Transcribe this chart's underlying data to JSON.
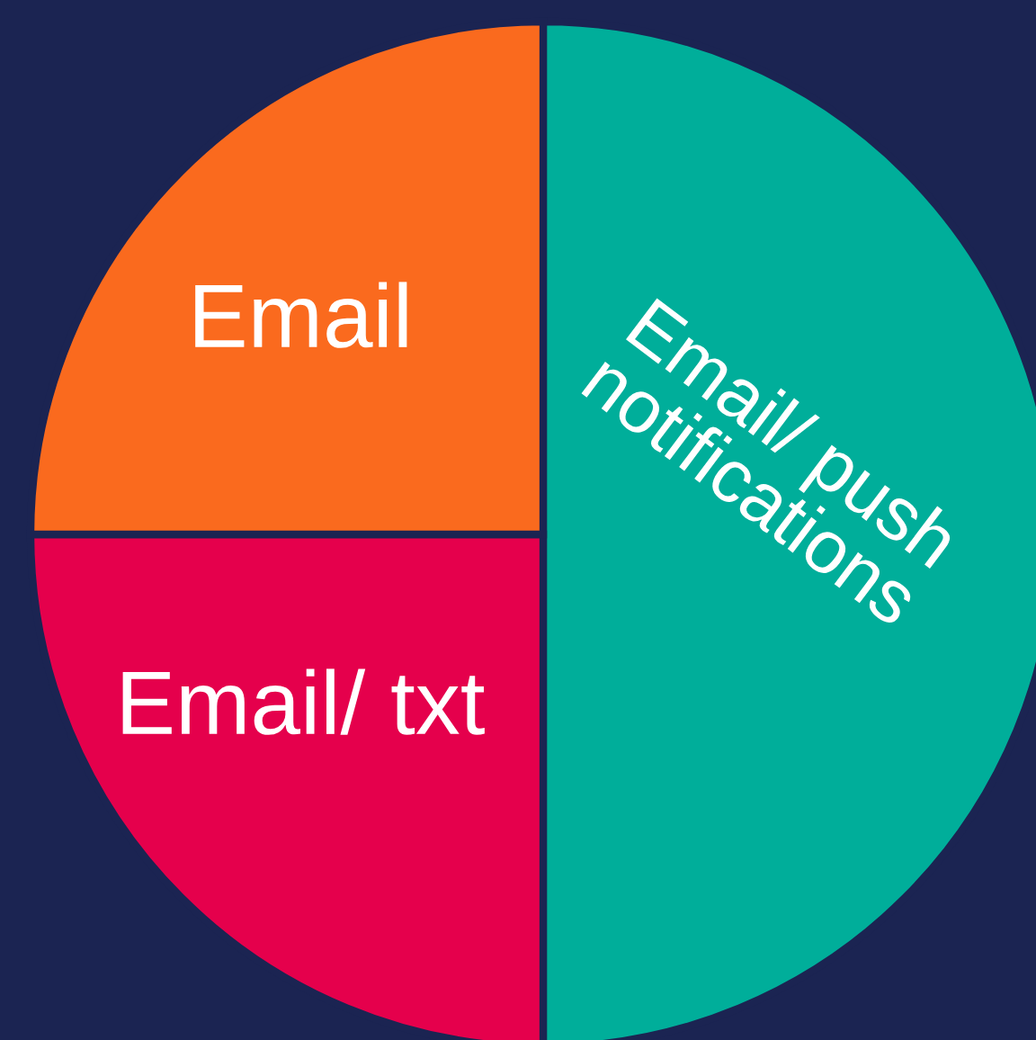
{
  "chart_data": {
    "type": "pie",
    "categories": [
      "Email/ push notifications",
      "Email/ txt",
      "Email"
    ],
    "values": [
      50,
      25,
      25
    ],
    "colors": [
      "#00ae9a",
      "#e5004c",
      "#fa6a1e"
    ]
  }
}
